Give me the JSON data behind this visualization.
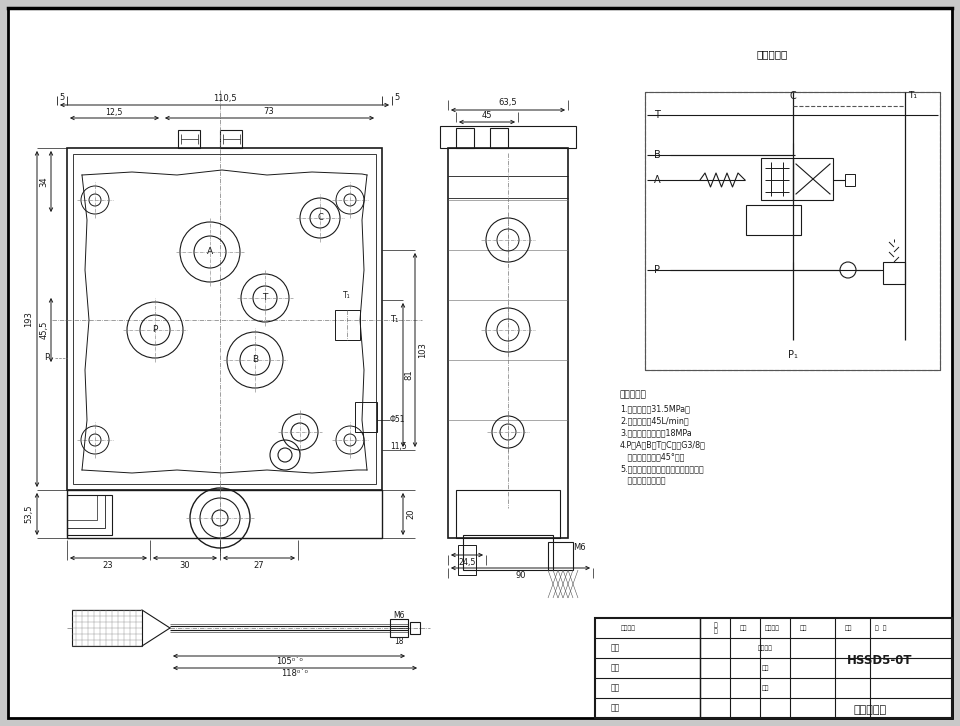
{
  "bg_color": "#c8c8c8",
  "paper_color": "#ffffff",
  "line_color": "#1a1a1a",
  "dim_color": "#1a1a1a",
  "title": "HSSD5-0T",
  "subtitle": "一路多路阀",
  "hydraulic_title": "液压原理图",
  "tech_title": "技术参数：",
  "tech_params": [
    "1.额定压力：31.5MPa。",
    "2.额定流量：45L/min。",
    "3.先导阀开启压力：18MPa",
    "4.P、A、B、T、C口为G3/8，",
    "   清律孔进口倒觓45°觓。",
    "5.未注明公差属中，全部锐化处理外，",
    "   汤渗硬度为标准。"
  ],
  "notes": {
    "dim_110_5": "110,5",
    "dim_5L": "5",
    "dim_5R": "5",
    "dim_12_5": "12,5",
    "dim_73": "73",
    "dim_193": "193",
    "dim_34": "34",
    "dim_45_5": "45,5",
    "dim_53_5": "53,5",
    "dim_103": "103",
    "dim_81": "81",
    "dim_phi51": "Φ51",
    "dim_20": "20",
    "dim_11_5": "11,5",
    "dim_23": "23",
    "dim_30": "30",
    "dim_27": "27",
    "dim_63_5": "63,5",
    "dim_45": "45",
    "dim_90": "90",
    "dim_24_5": "24,5",
    "dim_105": "105",
    "dim_118": "118",
    "dim_18": "18",
    "label_T1": "T₁",
    "label_P": "P",
    "label_C": "C",
    "label_T": "T",
    "label_B": "B",
    "label_A": "A",
    "label_M6_side": "M6",
    "label_M6_screw": "M6",
    "label_P1": "P₁"
  }
}
